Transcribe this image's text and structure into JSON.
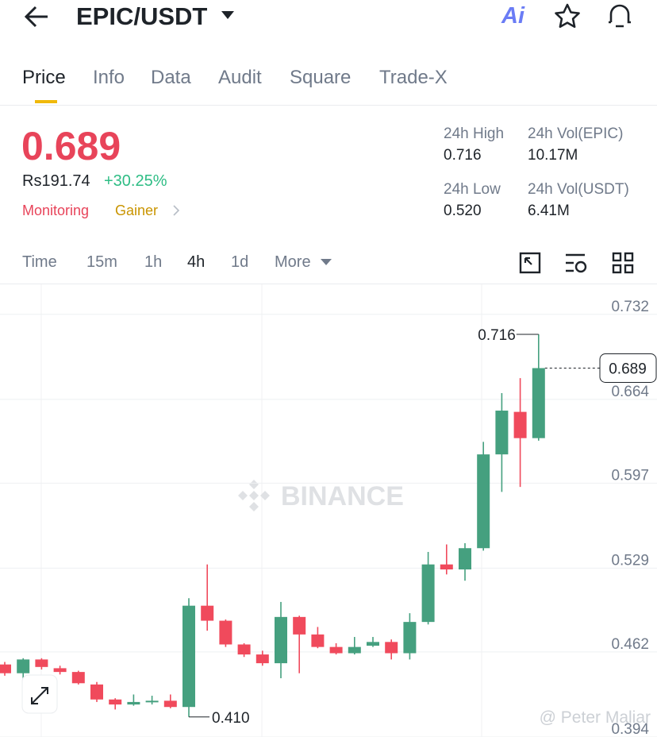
{
  "header": {
    "pair": "EPIC/USDT",
    "ai": "Ai"
  },
  "tabs": [
    "Price",
    "Info",
    "Data",
    "Audit",
    "Square",
    "Trade-X"
  ],
  "price": {
    "last": "0.689",
    "local": "Rs191.74",
    "change": "+30.25%",
    "tags": [
      "Monitoring",
      "Gainer"
    ]
  },
  "stats": [
    {
      "label": "24h High",
      "value": "0.716"
    },
    {
      "label": "24h Vol(EPIC)",
      "value": "10.17M"
    },
    {
      "label": "24h Low",
      "value": "0.520"
    },
    {
      "label": "24h Vol(USDT)",
      "value": "6.41M"
    }
  ],
  "intervals": [
    "Time",
    "15m",
    "1h",
    "4h",
    "1d",
    "More"
  ],
  "chart_data": {
    "type": "candlestick",
    "open": [
      0.452,
      0.445,
      0.456,
      0.449,
      0.446,
      0.436,
      0.424,
      0.42,
      0.422,
      0.423,
      0.418,
      0.499,
      0.487,
      0.468,
      0.46,
      0.453,
      0.49,
      0.476,
      0.466,
      0.461,
      0.467,
      0.47,
      0.461,
      0.486,
      0.532,
      0.528,
      0.545,
      0.62,
      0.654,
      0.633
    ],
    "high": [
      0.454,
      0.457,
      0.457,
      0.451,
      0.447,
      0.438,
      0.425,
      0.428,
      0.427,
      0.428,
      0.505,
      0.532,
      0.488,
      0.469,
      0.463,
      0.502,
      0.491,
      0.482,
      0.469,
      0.474,
      0.474,
      0.472,
      0.493,
      0.542,
      0.548,
      0.549,
      0.63,
      0.669,
      0.681,
      0.716
    ],
    "low": [
      0.443,
      0.44,
      0.448,
      0.444,
      0.436,
      0.422,
      0.416,
      0.419,
      0.42,
      0.417,
      0.41,
      0.479,
      0.466,
      0.458,
      0.451,
      0.441,
      0.445,
      0.465,
      0.46,
      0.46,
      0.466,
      0.456,
      0.456,
      0.484,
      0.524,
      0.519,
      0.543,
      0.59,
      0.594,
      0.631
    ],
    "close": [
      0.445,
      0.456,
      0.45,
      0.446,
      0.437,
      0.424,
      0.42,
      0.422,
      0.423,
      0.418,
      0.499,
      0.487,
      0.468,
      0.46,
      0.453,
      0.49,
      0.476,
      0.466,
      0.461,
      0.466,
      0.47,
      0.461,
      0.486,
      0.532,
      0.528,
      0.545,
      0.62,
      0.655,
      0.633,
      0.689
    ],
    "up_color": "#45a07f",
    "down_color": "#f04a5c",
    "ylim": [
      0.394,
      0.756
    ],
    "yticks": [
      0.394,
      0.462,
      0.529,
      0.597,
      0.664,
      0.732
    ],
    "grid": true,
    "high_label": {
      "value": 0.716,
      "label": "0.716"
    },
    "low_label": {
      "value": 0.41,
      "label": "0.410"
    },
    "last_price": {
      "value": 0.689,
      "label": "0.689"
    },
    "watermark": "BINANCE",
    "credit": "@ Peter Maliar"
  }
}
